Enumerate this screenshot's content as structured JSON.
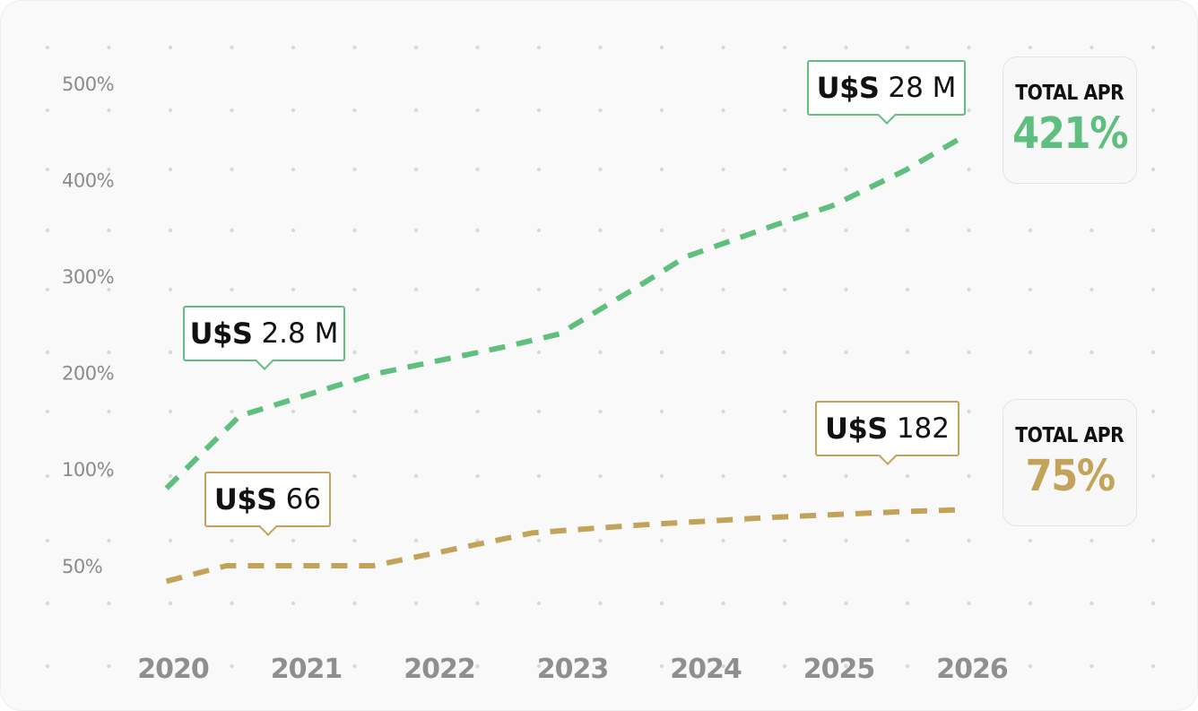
{
  "colors": {
    "green": "#5fbf7e",
    "gold": "#c3a35a",
    "axis_text": "#8b8b8b",
    "dot_grid": "#d9d9d9"
  },
  "callouts": {
    "green_start": {
      "currency": "U$S",
      "amount": "2.8 M"
    },
    "green_end": {
      "currency": "U$S",
      "amount": "28 M"
    },
    "gold_start": {
      "currency": "U$S",
      "amount": "66"
    },
    "gold_end": {
      "currency": "U$S",
      "amount": "182"
    }
  },
  "apr_boxes": {
    "green": {
      "label": "TOTAL APR",
      "value": "421%"
    },
    "gold": {
      "label": "TOTAL APR",
      "value": "75%"
    }
  },
  "chart_data": {
    "type": "line",
    "title": "",
    "xlabel": "",
    "ylabel": "",
    "y_ticks": [
      "500%",
      "400%",
      "300%",
      "200%",
      "100%",
      "50%"
    ],
    "x_ticks": [
      "2020",
      "2021",
      "2022",
      "2023",
      "2024",
      "2025",
      "2026"
    ],
    "grid": "dotted",
    "line_style": "dashed",
    "series": [
      {
        "color": "#5fbf7e",
        "points": [
          [
            2019.95,
            90
          ],
          [
            2020.5,
            155
          ],
          [
            2021.5,
            198
          ],
          [
            2022.5,
            227
          ],
          [
            2022.9,
            240
          ],
          [
            2023.5,
            290
          ],
          [
            2023.85,
            320
          ],
          [
            2024.5,
            352
          ],
          [
            2024.95,
            373
          ],
          [
            2025.5,
            410
          ],
          [
            2025.95,
            446
          ]
        ]
      },
      {
        "color": "#c3a35a",
        "points": [
          [
            2019.95,
            42
          ],
          [
            2020.4,
            50
          ],
          [
            2021.5,
            50
          ],
          [
            2022.0,
            57
          ],
          [
            2022.7,
            67
          ],
          [
            2023.5,
            71
          ],
          [
            2024.5,
            75
          ],
          [
            2025.5,
            78
          ],
          [
            2025.95,
            79
          ]
        ]
      }
    ]
  }
}
